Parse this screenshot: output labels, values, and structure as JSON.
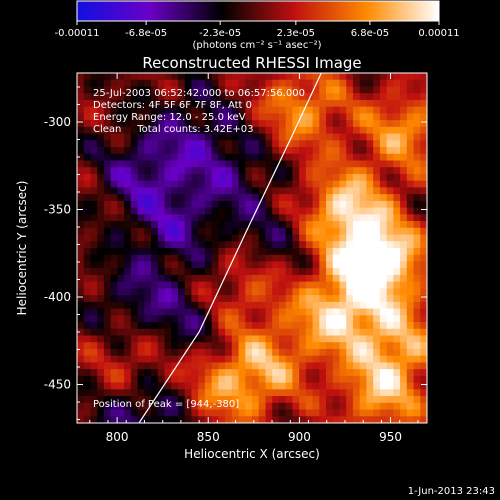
{
  "chart_data": {
    "type": "heatmap",
    "title": "Reconstructed RHESSI Image",
    "xlabel": "Heliocentric X (arcsec)",
    "ylabel": "Heliocentric Y (arcsec)",
    "xlim": [
      778,
      970
    ],
    "ylim": [
      -472,
      -272
    ],
    "x_ticks": [
      800,
      850,
      900,
      950
    ],
    "y_ticks": [
      -300,
      -350,
      -400,
      -450
    ],
    "colorbar": {
      "unit_label": "(photons cm⁻² s⁻¹ asec⁻²)",
      "min": -0.00011,
      "max": 0.00011,
      "tick_values": [
        -0.00011,
        -6.8e-05,
        -2.3e-05,
        2.3e-05,
        6.8e-05,
        0.00011
      ],
      "tick_labels": [
        "-0.00011",
        "-6.8e-05",
        "-2.3e-05",
        "2.3e-05",
        "6.8e-05",
        "0.00011"
      ],
      "colors": [
        "#1010e0",
        "#6a00c8",
        "#000000",
        "#c01010",
        "#ff8a00",
        "#ffffff"
      ]
    },
    "annotations": [
      "25-Jul-2003 06:52:42.000 to 06:57:56.000",
      "Detectors: 4F 5F 6F 7F 8F, Att 0",
      "Energy Range: 12.0 - 25.0 keV",
      "Clean     Total counts: 3.42E+03"
    ],
    "peak_text": "Position of Peak = [944,-380]",
    "peak": [
      944,
      -380
    ],
    "limb_curve": [
      [
        812,
        -472
      ],
      [
        845,
        -420
      ],
      [
        872,
        -360
      ],
      [
        895,
        -310
      ],
      [
        912,
        -272
      ]
    ],
    "sources": [
      {
        "x": 944,
        "y": -380,
        "amp": 1.0
      },
      {
        "x": 925,
        "y": -350,
        "amp": 0.75
      },
      {
        "x": 920,
        "y": -410,
        "amp": 0.7
      },
      {
        "x": 902,
        "y": -292,
        "amp": 0.55
      },
      {
        "x": 958,
        "y": -305,
        "amp": 0.55
      },
      {
        "x": 945,
        "y": -455,
        "amp": 0.6
      },
      {
        "x": 882,
        "y": -440,
        "amp": 0.5
      },
      {
        "x": 858,
        "y": -452,
        "amp": 0.45
      },
      {
        "x": 870,
        "y": -395,
        "amp": 0.35
      },
      {
        "x": 812,
        "y": -438,
        "amp": 0.35
      },
      {
        "x": 955,
        "y": -425,
        "amp": 0.5
      },
      {
        "x": 832,
        "y": -360,
        "amp": -0.35
      },
      {
        "x": 815,
        "y": -330,
        "amp": -0.4
      },
      {
        "x": 842,
        "y": -305,
        "amp": -0.3
      },
      {
        "x": 812,
        "y": -400,
        "amp": -0.3
      },
      {
        "x": 838,
        "y": -418,
        "amp": -0.3
      },
      {
        "x": 815,
        "y": -465,
        "amp": -0.45
      },
      {
        "x": 862,
        "y": -330,
        "amp": -0.3
      },
      {
        "x": 885,
        "y": -368,
        "amp": -0.25
      }
    ],
    "grid": false
  },
  "timestamp": "1-Jun-2013 23:43"
}
